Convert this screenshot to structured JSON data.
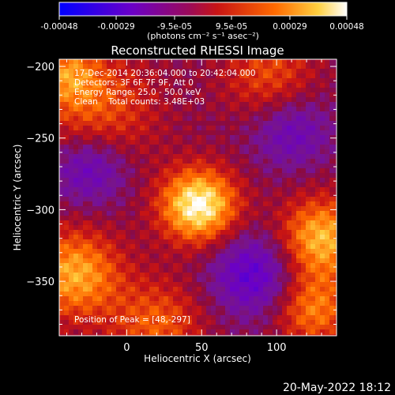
{
  "chart_data": {
    "type": "heatmap",
    "title": "Reconstructed RHESSI Image",
    "xlabel": "Heliocentric X (arcsec)",
    "ylabel": "Heliocentric Y (arcsec)",
    "xlim": [
      -45,
      140
    ],
    "ylim": [
      -388,
      -195
    ],
    "x_ticks": [
      0,
      50,
      100
    ],
    "y_ticks": [
      -200,
      -250,
      -300,
      -350
    ],
    "colorbar": {
      "ticks": [
        -0.00048,
        -0.00029,
        -9.5e-05,
        9.5e-05,
        0.00029,
        0.00048
      ],
      "tick_labels": [
        "-0.00048",
        "-0.00029",
        "-9.5e-05",
        "9.5e-05",
        "0.00029",
        "0.00048"
      ],
      "label": "(photons cm⁻² s⁻¹ asec⁻²)",
      "range": [
        -0.00048,
        0.00048
      ],
      "colormap": "blue-purple-red-orange-yellow-white"
    },
    "annotations": {
      "time": "17-Dec-2014 20:36:04.000 to 20:42:04.000",
      "detectors": "Detectors: 3F 6F 7F 9F, Att 0",
      "energy": "Energy Range: 25.0 - 50.0 keV",
      "clean": "Clean    Total counts: 3.48E+03",
      "peak": "Position of Peak = [48,-297]"
    },
    "peak": {
      "x": 48,
      "y": -297
    },
    "sources": [
      {
        "x": 48,
        "y": -297,
        "amp": 1.0,
        "sigma": 18
      },
      {
        "x": -35,
        "y": -345,
        "amp": 0.7,
        "sigma": 22
      },
      {
        "x": 130,
        "y": -320,
        "amp": 0.75,
        "sigma": 20
      },
      {
        "x": -20,
        "y": -230,
        "amp": 0.45,
        "sigma": 28
      },
      {
        "x": 125,
        "y": -370,
        "amp": 0.55,
        "sigma": 18
      },
      {
        "x": 20,
        "y": -380,
        "amp": 0.45,
        "sigma": 22
      },
      {
        "x": 95,
        "y": -205,
        "amp": 0.4,
        "sigma": 22
      },
      {
        "x": -40,
        "y": -205,
        "amp": 0.45,
        "sigma": 15
      }
    ],
    "negative_regions": [
      {
        "x": 85,
        "y": -345,
        "amp": 0.5,
        "sigma": 20
      },
      {
        "x": -25,
        "y": -270,
        "amp": 0.45,
        "sigma": 18
      },
      {
        "x": 110,
        "y": -245,
        "amp": 0.35,
        "sigma": 18
      }
    ]
  },
  "footer": {
    "date": "20-May-2022 18:12"
  },
  "colors": {
    "background": "#000000",
    "axes": "#ffffff",
    "text": "#ffffff"
  }
}
